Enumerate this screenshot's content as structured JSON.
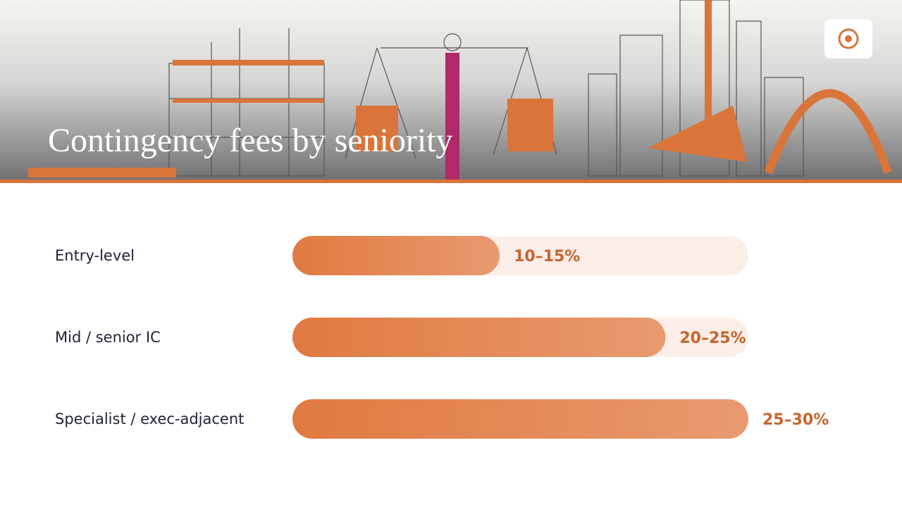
{
  "chart_data": {
    "type": "range-bar",
    "title": "Contingency fees by seniority",
    "categories": [
      "Entry-level",
      "Mid / senior IC",
      "Specialist / exec-adjacent"
    ],
    "low": [
      10,
      20,
      25
    ],
    "high": [
      15,
      25,
      30
    ],
    "value_labels": [
      "10–15%",
      "20–25%",
      "25–30%"
    ],
    "color": "#e07a40"
  }
}
